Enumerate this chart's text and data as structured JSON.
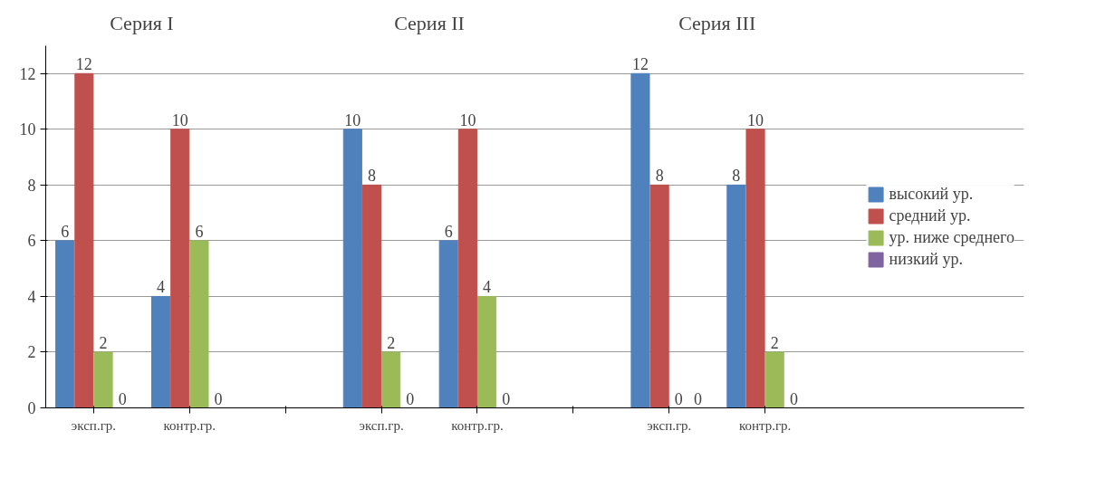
{
  "chart_data": {
    "type": "bar",
    "categories": [
      "эксп.гр.",
      "контр.гр.",
      null,
      "эксп.гр.",
      "контр.гр.",
      null,
      "эксп.гр.",
      "контр.гр."
    ],
    "series": [
      {
        "name": "высокий ур.",
        "color": "#4f81bd",
        "values": [
          6,
          4,
          null,
          10,
          6,
          null,
          12,
          8
        ]
      },
      {
        "name": "средний ур.",
        "color": "#c0504d",
        "values": [
          12,
          10,
          null,
          8,
          10,
          null,
          8,
          10
        ]
      },
      {
        "name": "ур. ниже среднего",
        "color": "#9bbb59",
        "values": [
          2,
          6,
          null,
          2,
          4,
          null,
          0,
          2
        ]
      },
      {
        "name": "низкий ур.",
        "color": "#8064a2",
        "values": [
          0,
          0,
          null,
          0,
          0,
          null,
          0,
          0
        ]
      }
    ],
    "annotations": [
      "Серия I",
      "Серия II",
      "Серия III"
    ],
    "ylim": [
      0,
      13
    ],
    "yticks": [
      0,
      2,
      4,
      6,
      8,
      10,
      12
    ],
    "grid": "y",
    "legend": "right",
    "data_labels": true
  }
}
